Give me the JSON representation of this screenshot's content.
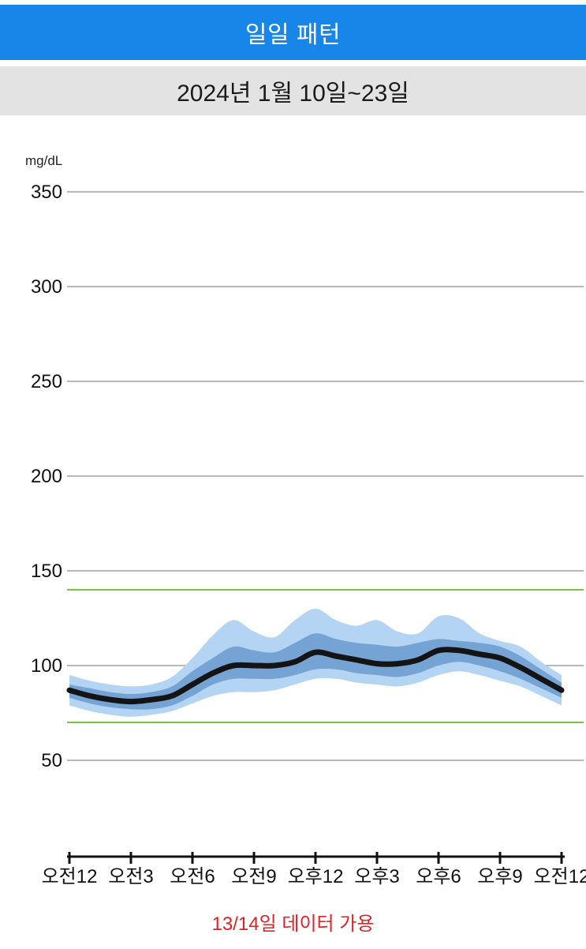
{
  "header": {
    "title": "일일 패턴",
    "bg": "#1886e8"
  },
  "subheader": {
    "date_range": "2024년 1월 10일~23일"
  },
  "footer": {
    "note": "13/14일 데이터 가용",
    "color": "#e32124"
  },
  "chart_data": {
    "type": "area",
    "title": "일일 패턴",
    "subtitle": "2024년 1월 10일~23일",
    "ylabel": "mg/dL",
    "yticks": [
      350,
      300,
      250,
      200,
      150,
      100,
      50
    ],
    "ylim": [
      40,
      360
    ],
    "grid": true,
    "x_labels": [
      "오전12",
      "오전3",
      "오전6",
      "오전9",
      "오후12",
      "오후3",
      "오후6",
      "오후9",
      "오전12"
    ],
    "x_tick_hours": [
      0,
      3,
      6,
      9,
      12,
      15,
      18,
      21,
      24
    ],
    "x_hours": [
      0,
      1,
      2,
      3,
      4,
      5,
      6,
      7,
      8,
      9,
      10,
      11,
      12,
      13,
      14,
      15,
      16,
      17,
      18,
      19,
      20,
      21,
      22,
      23,
      24
    ],
    "target_range": {
      "low": 70,
      "high": 140,
      "color": "#7cc142"
    },
    "series": [
      {
        "name": "median",
        "values": [
          87,
          84,
          82,
          81,
          82,
          84,
          90,
          96,
          100,
          100,
          100,
          102,
          107,
          105,
          103,
          101,
          101,
          103,
          108,
          108,
          106,
          104,
          99,
          93,
          87
        ]
      },
      {
        "name": "p25",
        "values": [
          83,
          80,
          78,
          77,
          77,
          79,
          84,
          90,
          93,
          93,
          93,
          95,
          98,
          98,
          96,
          95,
          94,
          96,
          100,
          102,
          100,
          97,
          93,
          88,
          83
        ]
      },
      {
        "name": "p75",
        "values": [
          90,
          88,
          86,
          85,
          86,
          89,
          97,
          104,
          110,
          108,
          107,
          112,
          117,
          114,
          112,
          111,
          110,
          112,
          114,
          113,
          112,
          110,
          105,
          98,
          91
        ]
      },
      {
        "name": "p10",
        "values": [
          79,
          76,
          74,
          73,
          74,
          76,
          80,
          84,
          86,
          86,
          87,
          90,
          93,
          93,
          91,
          90,
          89,
          91,
          95,
          97,
          95,
          92,
          89,
          84,
          79
        ]
      },
      {
        "name": "p90",
        "values": [
          95,
          92,
          90,
          89,
          90,
          94,
          104,
          116,
          124,
          118,
          115,
          124,
          130,
          124,
          121,
          124,
          118,
          117,
          126,
          125,
          117,
          113,
          110,
          102,
          95
        ]
      }
    ],
    "colors": {
      "outer_band": "#b3d4f2",
      "inner_band": "#74a3d4",
      "median": "#141414",
      "gridline": "#a0a0a0",
      "axis": "#111111"
    }
  }
}
